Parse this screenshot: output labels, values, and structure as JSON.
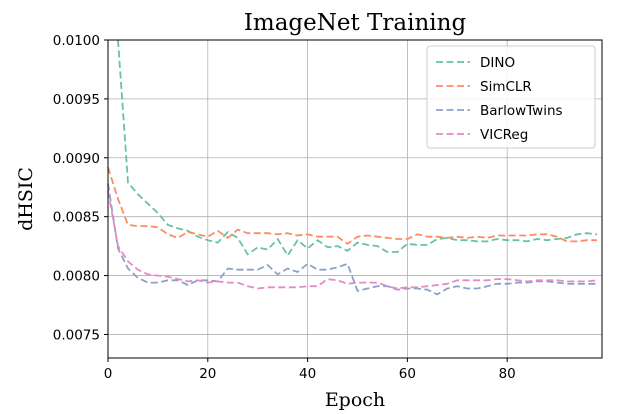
{
  "chart_data": {
    "type": "line",
    "title": "ImageNet Training",
    "xlabel": "Epoch",
    "ylabel": "dHSIC",
    "xlim": [
      0,
      99
    ],
    "ylim": [
      0.0073,
      0.01
    ],
    "xticks": [
      0,
      20,
      40,
      60,
      80
    ],
    "xtick_labels": [
      "0",
      "20",
      "40",
      "60",
      "80"
    ],
    "yticks": [
      0.0075,
      0.008,
      0.0085,
      0.009,
      0.0095,
      0.01
    ],
    "ytick_labels": [
      "0.0075",
      "0.0080",
      "0.0085",
      "0.0090",
      "0.0095",
      "0.0100"
    ],
    "grid": true,
    "legend_position": "top-right",
    "series": [
      {
        "name": "DINO",
        "color": "#66c2a5",
        "x": [
          2,
          4,
          6,
          8,
          10,
          12,
          14,
          16,
          18,
          20,
          22,
          24,
          26,
          28,
          30,
          32,
          34,
          36,
          38,
          40,
          42,
          44,
          46,
          48,
          50,
          52,
          54,
          56,
          58,
          60,
          62,
          64,
          66,
          68,
          70,
          72,
          74,
          76,
          78,
          80,
          82,
          84,
          86,
          88,
          90,
          92,
          94,
          96,
          98
        ],
        "y": [
          0.01,
          0.00879,
          0.00869,
          0.00861,
          0.00853,
          0.00843,
          0.0084,
          0.00838,
          0.00833,
          0.0083,
          0.00828,
          0.00837,
          0.00832,
          0.00818,
          0.00824,
          0.00822,
          0.00831,
          0.00817,
          0.0083,
          0.00823,
          0.0083,
          0.00824,
          0.00825,
          0.00821,
          0.00828,
          0.00826,
          0.00825,
          0.0082,
          0.0082,
          0.00827,
          0.00826,
          0.00826,
          0.00831,
          0.00832,
          0.0083,
          0.0083,
          0.00829,
          0.00829,
          0.00831,
          0.0083,
          0.0083,
          0.00829,
          0.00831,
          0.0083,
          0.00831,
          0.00832,
          0.00835,
          0.00836,
          0.00835
        ]
      },
      {
        "name": "SimCLR",
        "color": "#fc8d62",
        "x": [
          0,
          2,
          4,
          6,
          8,
          10,
          12,
          14,
          16,
          18,
          20,
          22,
          24,
          26,
          28,
          30,
          32,
          34,
          36,
          38,
          40,
          42,
          44,
          46,
          48,
          50,
          52,
          54,
          56,
          58,
          60,
          62,
          64,
          66,
          68,
          70,
          72,
          74,
          76,
          78,
          80,
          82,
          84,
          86,
          88,
          90,
          92,
          94,
          96,
          98
        ],
        "y": [
          0.00892,
          0.00865,
          0.00843,
          0.00842,
          0.00842,
          0.00841,
          0.00835,
          0.00832,
          0.00837,
          0.00835,
          0.00833,
          0.00838,
          0.00832,
          0.00839,
          0.00836,
          0.00836,
          0.00836,
          0.00835,
          0.00836,
          0.00834,
          0.00835,
          0.00833,
          0.00833,
          0.00833,
          0.00827,
          0.00833,
          0.00834,
          0.00833,
          0.00832,
          0.00831,
          0.00831,
          0.00835,
          0.00833,
          0.00833,
          0.00832,
          0.00833,
          0.00832,
          0.00833,
          0.00832,
          0.00834,
          0.00834,
          0.00834,
          0.00834,
          0.00835,
          0.00835,
          0.00833,
          0.00829,
          0.00829,
          0.0083,
          0.0083
        ]
      },
      {
        "name": "BarlowTwins",
        "color": "#8da0cb",
        "x": [
          0,
          2,
          4,
          6,
          8,
          10,
          12,
          14,
          16,
          18,
          20,
          22,
          24,
          26,
          28,
          30,
          32,
          34,
          36,
          38,
          40,
          42,
          44,
          46,
          48,
          50,
          52,
          54,
          56,
          58,
          60,
          62,
          64,
          66,
          68,
          70,
          72,
          74,
          76,
          78,
          80,
          82,
          84,
          86,
          88,
          90,
          92,
          94,
          96,
          98
        ],
        "y": [
          0.00878,
          0.00823,
          0.00806,
          0.00798,
          0.00794,
          0.00794,
          0.00796,
          0.00796,
          0.00792,
          0.00796,
          0.00796,
          0.00795,
          0.00806,
          0.00805,
          0.00805,
          0.00805,
          0.00809,
          0.00801,
          0.00806,
          0.00803,
          0.0081,
          0.00805,
          0.00805,
          0.00807,
          0.0081,
          0.00787,
          0.00789,
          0.00791,
          0.00791,
          0.00788,
          0.00789,
          0.00789,
          0.00788,
          0.00784,
          0.00789,
          0.00791,
          0.00789,
          0.00789,
          0.00791,
          0.00793,
          0.00793,
          0.00794,
          0.00794,
          0.00795,
          0.00795,
          0.00794,
          0.00793,
          0.00793,
          0.00793,
          0.00793
        ]
      },
      {
        "name": "VICReg",
        "color": "#e78ac3",
        "x": [
          0,
          2,
          4,
          6,
          8,
          10,
          12,
          14,
          16,
          18,
          20,
          22,
          24,
          26,
          28,
          30,
          32,
          34,
          36,
          38,
          40,
          42,
          44,
          46,
          48,
          50,
          52,
          54,
          56,
          58,
          60,
          62,
          64,
          66,
          68,
          70,
          72,
          74,
          76,
          78,
          80,
          82,
          84,
          86,
          88,
          90,
          92,
          94,
          96,
          98
        ],
        "y": [
          0.00872,
          0.00825,
          0.00812,
          0.00805,
          0.00801,
          0.008,
          0.00799,
          0.00797,
          0.00795,
          0.00796,
          0.00794,
          0.00795,
          0.00794,
          0.00794,
          0.00791,
          0.00789,
          0.0079,
          0.0079,
          0.0079,
          0.0079,
          0.00791,
          0.00791,
          0.00797,
          0.00796,
          0.00793,
          0.00794,
          0.00794,
          0.00794,
          0.00791,
          0.00789,
          0.0079,
          0.0079,
          0.00791,
          0.00792,
          0.00793,
          0.00796,
          0.00796,
          0.00796,
          0.00796,
          0.00797,
          0.00797,
          0.00796,
          0.00795,
          0.00796,
          0.00796,
          0.00796,
          0.00795,
          0.00795,
          0.00795,
          0.00796
        ]
      }
    ]
  }
}
